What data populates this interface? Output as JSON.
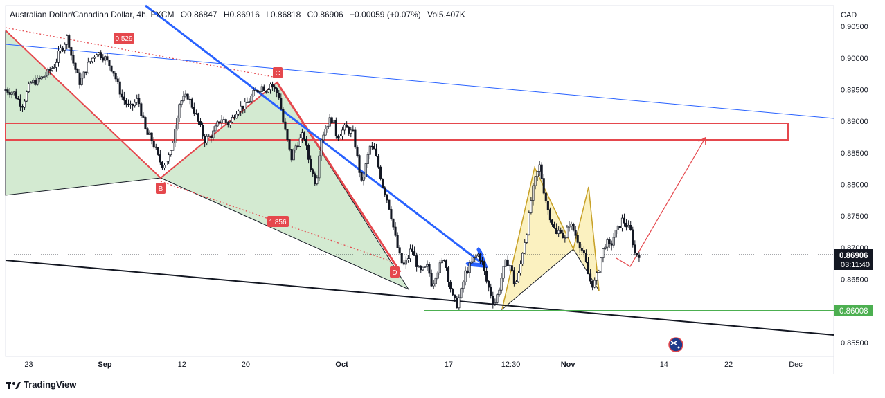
{
  "header": {
    "title": "Australian Dollar/Canadian Dollar, 4h, FXCM",
    "open": "O0.86847",
    "high": "H0.86916",
    "low": "L0.86818",
    "close": "C0.86906",
    "change": "+0.00059 (+0.07%)",
    "volume": "Vol5.407K"
  },
  "branding": {
    "logo_text": "TradingView"
  },
  "colors": {
    "up": "#131722",
    "down": "#131722",
    "bull_pattern_fill": "#d3ead1",
    "harmonic_stroke": "#e5484d",
    "yellow_pattern_fill": "#fbf1c0",
    "blue_line": "#2962ff",
    "green_line": "#4caf50",
    "zone": "#e5484d"
  },
  "chart_data": {
    "type": "candlestick",
    "symbol": "AUDCAD",
    "timeframe": "4h",
    "currency_label": "CAD",
    "y_ticks": [
      "0.90500",
      "0.90000",
      "0.89500",
      "0.89000",
      "0.88500",
      "0.88000",
      "0.87500",
      "0.87000",
      "0.86500",
      "0.86000",
      "0.85500"
    ],
    "y_tick_values": [
      0.905,
      0.9,
      0.895,
      0.89,
      0.885,
      0.88,
      0.875,
      0.87,
      0.865,
      0.86,
      0.855
    ],
    "ylim": [
      0.8528,
      0.9083
    ],
    "x_ticks": [
      "23",
      "Sep",
      "12",
      "20",
      "Oct",
      "17",
      "12:30",
      "Nov",
      "14",
      "22",
      "Dec"
    ],
    "x_tick_bold": [
      false,
      true,
      false,
      false,
      true,
      false,
      false,
      true,
      false,
      false,
      false
    ],
    "x_tick_pos": [
      0.028,
      0.12,
      0.213,
      0.29,
      0.406,
      0.535,
      0.61,
      0.679,
      0.795,
      0.873,
      0.954
    ],
    "price_label": {
      "value": "0.86906",
      "countdown": "03:11:40"
    },
    "green_level_label": "0.86008",
    "pattern_points": {
      "B": "B",
      "C": "C",
      "D": "D"
    },
    "ratios": [
      "0.529",
      "1.856"
    ],
    "close_path": [
      [
        0.0,
        0.895
      ],
      [
        0.01,
        0.8945
      ],
      [
        0.02,
        0.8925
      ],
      [
        0.03,
        0.896
      ],
      [
        0.04,
        0.8965
      ],
      [
        0.05,
        0.8975
      ],
      [
        0.06,
        0.899
      ],
      [
        0.065,
        0.901
      ],
      [
        0.07,
        0.902
      ],
      [
        0.075,
        0.9035
      ],
      [
        0.08,
        0.9
      ],
      [
        0.09,
        0.896
      ],
      [
        0.1,
        0.899
      ],
      [
        0.11,
        0.901
      ],
      [
        0.12,
        0.9
      ],
      [
        0.13,
        0.898
      ],
      [
        0.14,
        0.894
      ],
      [
        0.15,
        0.892
      ],
      [
        0.16,
        0.8935
      ],
      [
        0.17,
        0.888
      ],
      [
        0.175,
        0.8875
      ],
      [
        0.18,
        0.886
      ],
      [
        0.185,
        0.884
      ],
      [
        0.19,
        0.883
      ],
      [
        0.2,
        0.885
      ],
      [
        0.205,
        0.8895
      ],
      [
        0.21,
        0.893
      ],
      [
        0.22,
        0.894
      ],
      [
        0.23,
        0.891
      ],
      [
        0.24,
        0.887
      ],
      [
        0.25,
        0.888
      ],
      [
        0.26,
        0.8905
      ],
      [
        0.27,
        0.8895
      ],
      [
        0.28,
        0.892
      ],
      [
        0.29,
        0.8925
      ],
      [
        0.3,
        0.8945
      ],
      [
        0.31,
        0.8955
      ],
      [
        0.315,
        0.895
      ],
      [
        0.32,
        0.896
      ],
      [
        0.33,
        0.894
      ],
      [
        0.335,
        0.89
      ],
      [
        0.34,
        0.887
      ],
      [
        0.345,
        0.884
      ],
      [
        0.35,
        0.886
      ],
      [
        0.36,
        0.888
      ],
      [
        0.365,
        0.8845
      ],
      [
        0.37,
        0.882
      ],
      [
        0.375,
        0.88
      ],
      [
        0.38,
        0.887
      ],
      [
        0.39,
        0.89
      ],
      [
        0.395,
        0.8905
      ],
      [
        0.4,
        0.8875
      ],
      [
        0.41,
        0.889
      ],
      [
        0.42,
        0.888
      ],
      [
        0.425,
        0.884
      ],
      [
        0.43,
        0.88
      ],
      [
        0.435,
        0.883
      ],
      [
        0.44,
        0.886
      ],
      [
        0.445,
        0.8855
      ],
      [
        0.45,
        0.883
      ],
      [
        0.455,
        0.88
      ],
      [
        0.46,
        0.878
      ],
      [
        0.465,
        0.8755
      ],
      [
        0.47,
        0.872
      ],
      [
        0.475,
        0.869
      ],
      [
        0.48,
        0.867
      ],
      [
        0.485,
        0.868
      ],
      [
        0.49,
        0.87
      ],
      [
        0.495,
        0.868
      ],
      [
        0.5,
        0.866
      ],
      [
        0.51,
        0.867
      ],
      [
        0.515,
        0.864
      ],
      [
        0.52,
        0.866
      ],
      [
        0.53,
        0.8685
      ],
      [
        0.535,
        0.865
      ],
      [
        0.54,
        0.862
      ],
      [
        0.545,
        0.861
      ],
      [
        0.55,
        0.863
      ],
      [
        0.555,
        0.866
      ],
      [
        0.56,
        0.867
      ],
      [
        0.57,
        0.869
      ],
      [
        0.575,
        0.868
      ],
      [
        0.58,
        0.865
      ],
      [
        0.585,
        0.863
      ],
      [
        0.59,
        0.861
      ],
      [
        0.595,
        0.863
      ],
      [
        0.6,
        0.866
      ],
      [
        0.605,
        0.868
      ],
      [
        0.61,
        0.867
      ],
      [
        0.615,
        0.864
      ],
      [
        0.62,
        0.866
      ],
      [
        0.625,
        0.87
      ],
      [
        0.63,
        0.873
      ],
      [
        0.635,
        0.878
      ],
      [
        0.64,
        0.881
      ],
      [
        0.645,
        0.883
      ],
      [
        0.65,
        0.879
      ],
      [
        0.655,
        0.876
      ],
      [
        0.66,
        0.874
      ],
      [
        0.665,
        0.872
      ],
      [
        0.67,
        0.873
      ],
      [
        0.675,
        0.871
      ],
      [
        0.68,
        0.874
      ],
      [
        0.685,
        0.873
      ],
      [
        0.69,
        0.8715
      ],
      [
        0.695,
        0.87
      ],
      [
        0.7,
        0.868
      ],
      [
        0.705,
        0.865
      ],
      [
        0.71,
        0.864
      ],
      [
        0.715,
        0.866
      ],
      [
        0.72,
        0.869
      ],
      [
        0.725,
        0.871
      ],
      [
        0.73,
        0.87
      ],
      [
        0.735,
        0.872
      ],
      [
        0.74,
        0.873
      ],
      [
        0.745,
        0.8745
      ],
      [
        0.75,
        0.8735
      ],
      [
        0.755,
        0.8725
      ],
      [
        0.76,
        0.869
      ],
      [
        0.765,
        0.869
      ]
    ]
  }
}
